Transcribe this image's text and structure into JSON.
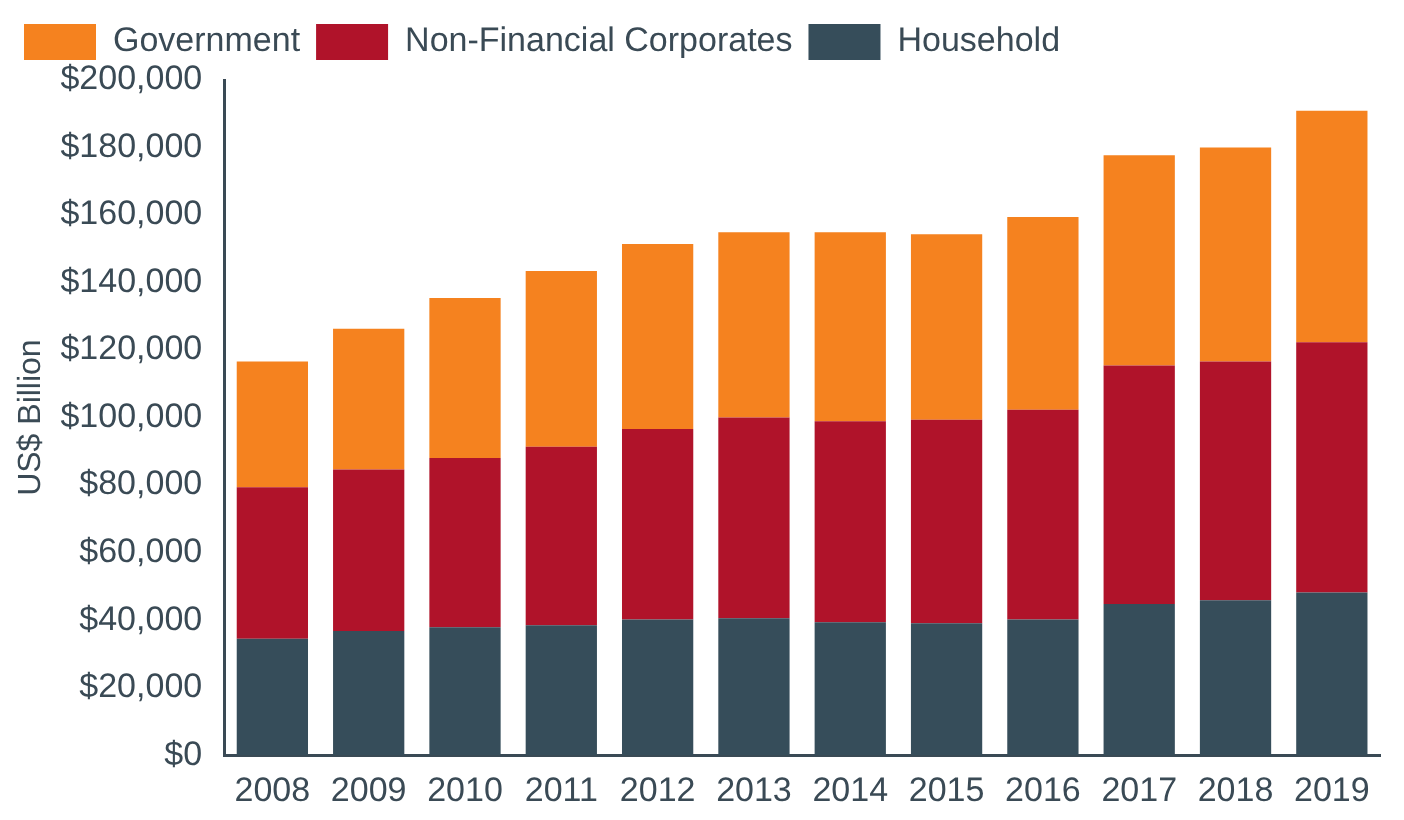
{
  "chart_data": {
    "type": "bar",
    "stacked": true,
    "ylabel": "US$ Billion",
    "categories": [
      "2008",
      "2009",
      "2010",
      "2011",
      "2012",
      "2013",
      "2014",
      "2015",
      "2016",
      "2017",
      "2018",
      "2019"
    ],
    "series": [
      {
        "name": "Household",
        "color": "#364d5a",
        "values": [
          34500,
          36800,
          37900,
          38500,
          40200,
          40600,
          39400,
          39100,
          40200,
          44800,
          45900,
          48200
        ]
      },
      {
        "name": "Non-Financial Corporates",
        "color": "#b0132a",
        "values": [
          44900,
          47800,
          50100,
          52900,
          56400,
          59400,
          59500,
          60300,
          62100,
          70600,
          70700,
          74100
        ]
      },
      {
        "name": "Government",
        "color": "#f5821f",
        "values": [
          37200,
          41700,
          47400,
          52000,
          54800,
          54900,
          56000,
          54900,
          57100,
          62300,
          63400,
          68600
        ]
      }
    ],
    "ylim": [
      0,
      200000
    ],
    "yticks": [
      {
        "value": 0,
        "label": "$0"
      },
      {
        "value": 20000,
        "label": "$20,000"
      },
      {
        "value": 40000,
        "label": "$40,000"
      },
      {
        "value": 60000,
        "label": "$60,000"
      },
      {
        "value": 80000,
        "label": "$80,000"
      },
      {
        "value": 100000,
        "label": "$100,000"
      },
      {
        "value": 120000,
        "label": "$120,000"
      },
      {
        "value": 140000,
        "label": "$140,000"
      },
      {
        "value": 160000,
        "label": "$160,000"
      },
      {
        "value": 180000,
        "label": "$180,000"
      },
      {
        "value": 200000,
        "label": "$200,000"
      }
    ],
    "grid": false,
    "legend": "top left"
  }
}
